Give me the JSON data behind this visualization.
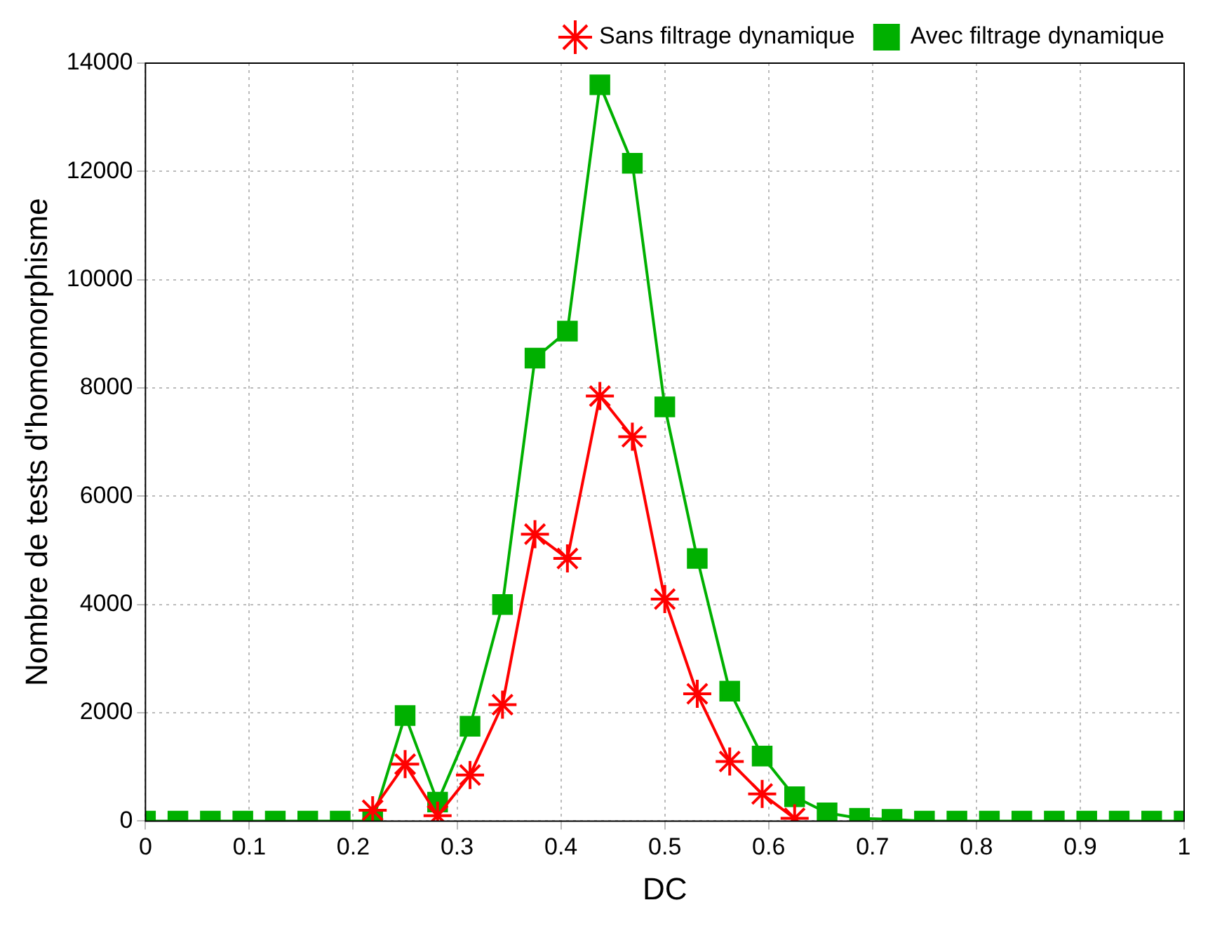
{
  "chart_data": {
    "type": "line",
    "xlabel": "DC",
    "ylabel": "Nombre de tests d'homomorphisme",
    "x": [
      0,
      0.03125,
      0.0625,
      0.09375,
      0.125,
      0.15625,
      0.1875,
      0.21875,
      0.25,
      0.28125,
      0.3125,
      0.34375,
      0.375,
      0.40625,
      0.4375,
      0.46875,
      0.5,
      0.53125,
      0.5625,
      0.59375,
      0.625,
      0.65625,
      0.6875,
      0.71875,
      0.75,
      0.78125,
      0.8125,
      0.84375,
      0.875,
      0.90625,
      0.9375,
      0.96875,
      1
    ],
    "series": [
      {
        "name": "Sans filtrage dynamique",
        "color": "#ff0000",
        "marker": "cross",
        "values": [
          null,
          null,
          null,
          null,
          null,
          null,
          null,
          200,
          1050,
          100,
          850,
          2150,
          5300,
          4850,
          7850,
          7100,
          4100,
          2350,
          1100,
          500,
          50,
          null,
          null,
          null,
          null,
          null,
          null,
          null,
          null,
          null,
          null,
          null,
          null
        ]
      },
      {
        "name": "Avec filtrage dynamique",
        "color": "#00b000",
        "marker": "square",
        "values": [
          0,
          0,
          0,
          0,
          0,
          0,
          0,
          0,
          1950,
          350,
          1750,
          4000,
          8550,
          9050,
          13600,
          12150,
          7650,
          4850,
          2400,
          1200,
          450,
          150,
          50,
          30,
          0,
          0,
          0,
          0,
          0,
          0,
          0,
          0,
          0
        ]
      }
    ],
    "xlim": [
      0,
      1
    ],
    "xticks": [
      0,
      0.1,
      0.2,
      0.3,
      0.4,
      0.5,
      0.6,
      0.7,
      0.8,
      0.9,
      1
    ],
    "ylim": [
      0,
      14000
    ],
    "yticks": [
      0,
      2000,
      4000,
      6000,
      8000,
      10000,
      12000,
      14000
    ],
    "grid": true,
    "legend": "top right",
    "line_style": "solid"
  }
}
